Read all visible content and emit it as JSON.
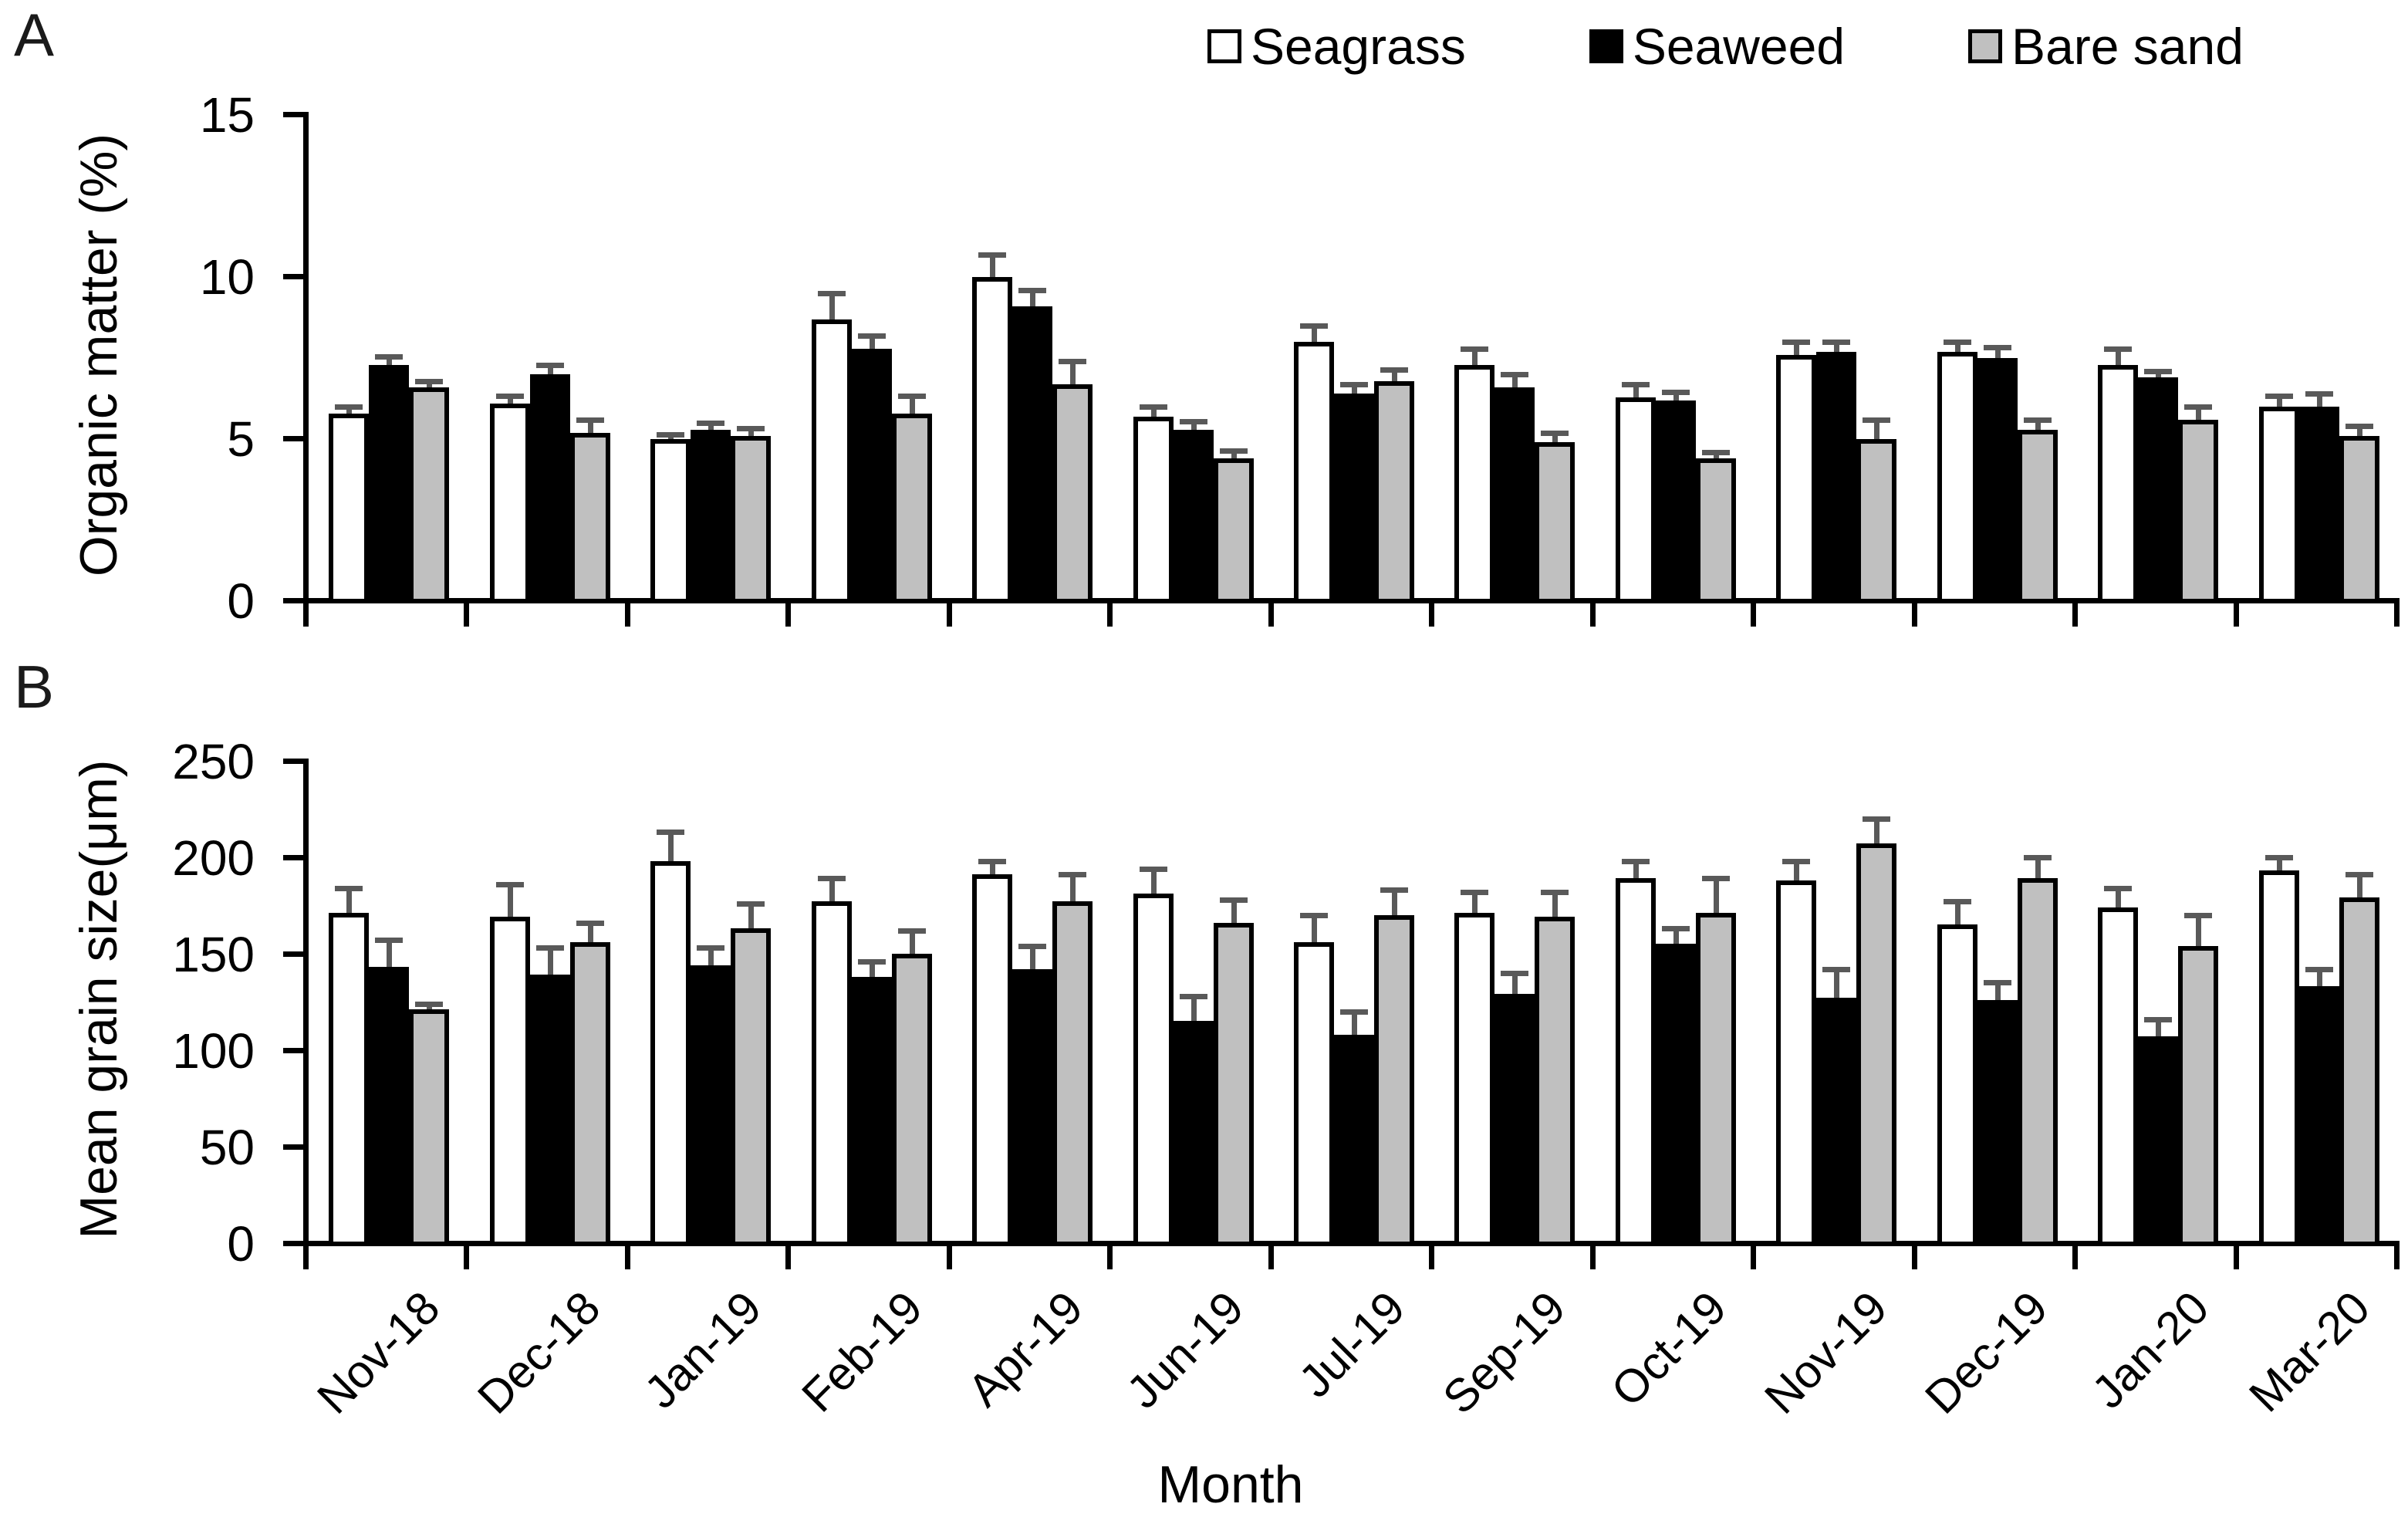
{
  "figure": {
    "panel_a_letter": "A",
    "panel_b_letter": "B",
    "x_axis_title": "Month"
  },
  "legend": {
    "items": [
      {
        "label": "Seagrass",
        "color": "#ffffff"
      },
      {
        "label": "Seaweed",
        "color": "#000000"
      },
      {
        "label": "Bare sand",
        "color": "#c0c0c0"
      }
    ]
  },
  "colors": {
    "bar_outline": "#000000",
    "error_bar": "#595959",
    "gray_fill": "#c0c0c0",
    "background": "#ffffff"
  },
  "chart_data": [
    {
      "type": "bar",
      "panel": "A",
      "ylabel": "Organic matter (%)",
      "xlabel": "",
      "ylim": [
        0,
        15
      ],
      "yticks": [
        0,
        5,
        10,
        15
      ],
      "grid": false,
      "legend_position": "top",
      "categories": [
        "Nov-18",
        "Dec-18",
        "Jan-19",
        "Feb-19",
        "Apr-19",
        "Jun-19",
        "Jul-19",
        "Sep-19",
        "Oct-19",
        "Nov-19",
        "Dec-19",
        "Jan-20",
        "Mar-20"
      ],
      "series": [
        {
          "name": "Seagrass",
          "fill": "#ffffff",
          "values": [
            5.7,
            6.0,
            4.9,
            8.6,
            9.9,
            5.6,
            7.9,
            7.2,
            6.2,
            7.5,
            7.6,
            7.2,
            5.9
          ],
          "errors": [
            0.2,
            0.25,
            0.15,
            0.8,
            0.7,
            0.3,
            0.5,
            0.5,
            0.4,
            0.4,
            0.3,
            0.5,
            0.35
          ]
        },
        {
          "name": "Seaweed",
          "fill": "#000000",
          "values": [
            7.2,
            6.9,
            5.2,
            7.7,
            9.0,
            5.2,
            6.3,
            6.5,
            6.1,
            7.6,
            7.4,
            6.8,
            5.9
          ],
          "errors": [
            0.25,
            0.3,
            0.2,
            0.4,
            0.5,
            0.25,
            0.3,
            0.4,
            0.25,
            0.3,
            0.35,
            0.2,
            0.4
          ]
        },
        {
          "name": "Bare sand",
          "fill": "#c0c0c0",
          "values": [
            6.5,
            5.1,
            5.0,
            5.7,
            6.6,
            4.3,
            6.7,
            4.8,
            4.3,
            4.9,
            5.2,
            5.5,
            5.0
          ],
          "errors": [
            0.2,
            0.4,
            0.25,
            0.55,
            0.7,
            0.25,
            0.35,
            0.3,
            0.2,
            0.6,
            0.3,
            0.4,
            0.3
          ]
        }
      ]
    },
    {
      "type": "bar",
      "panel": "B",
      "ylabel": "Mean grain size(μm)",
      "xlabel": "Month",
      "ylim": [
        0,
        250
      ],
      "yticks": [
        0,
        50,
        100,
        150,
        200,
        250
      ],
      "grid": false,
      "legend_position": "none",
      "categories": [
        "Nov-18",
        "Dec-18",
        "Jan-19",
        "Feb-19",
        "Apr-19",
        "Jun-19",
        "Jul-19",
        "Sep-19",
        "Oct-19",
        "Nov-19",
        "Dec-19",
        "Jan-20",
        "Mar-20"
      ],
      "series": [
        {
          "name": "Seagrass",
          "fill": "#ffffff",
          "values": [
            170,
            168,
            197,
            176,
            190,
            180,
            155,
            170,
            188,
            187,
            164,
            173,
            192
          ],
          "errors": [
            13,
            17,
            15,
            12,
            7,
            13,
            14,
            11,
            9,
            10,
            12,
            10,
            7
          ]
        },
        {
          "name": "Seaweed",
          "fill": "#000000",
          "values": [
            142,
            138,
            143,
            137,
            141,
            114,
            107,
            128,
            154,
            126,
            125,
            106,
            132
          ],
          "errors": [
            14,
            14,
            9,
            8,
            12,
            13,
            12,
            11,
            8,
            15,
            9,
            9,
            9
          ]
        },
        {
          "name": "Bare sand",
          "fill": "#c0c0c0",
          "values": [
            120,
            155,
            162,
            149,
            176,
            165,
            169,
            168,
            170,
            206,
            188,
            153,
            178
          ],
          "errors": [
            3,
            10,
            13,
            12,
            14,
            12,
            13,
            13,
            18,
            13,
            11,
            16,
            12
          ]
        }
      ]
    }
  ]
}
